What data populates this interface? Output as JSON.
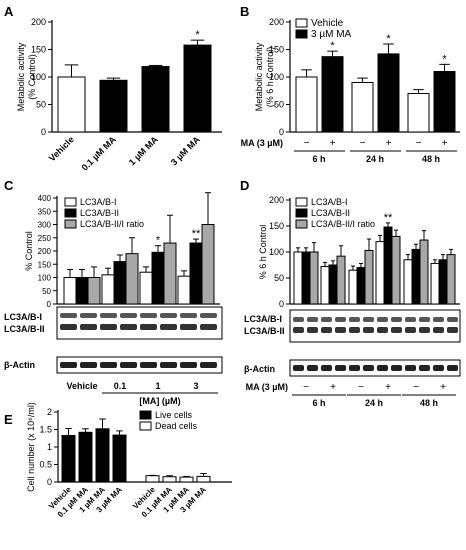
{
  "chart_data": [
    {
      "panel": "A",
      "type": "bar",
      "ylabel": "Metabolic activity\n(% Control)",
      "ylim": [
        0,
        200
      ],
      "yticks": [
        0,
        50,
        100,
        150,
        200
      ],
      "categories": [
        "Vehicle",
        "0.1 µM MA",
        "1 µM MA",
        "3 µM MA"
      ],
      "values": [
        100,
        94,
        119,
        158
      ],
      "errors": [
        22,
        4,
        2,
        9
      ],
      "fills": [
        "#ffffff",
        "#000000",
        "#000000",
        "#000000"
      ],
      "annotations": [
        "",
        "",
        "",
        "*"
      ]
    },
    {
      "panel": "B",
      "type": "bar",
      "ylabel": "Metabolic activity\n(% 6 h Control)",
      "ylim": [
        0,
        200
      ],
      "yticks": [
        0,
        50,
        100,
        150,
        200
      ],
      "legend": [
        "Vehicle",
        "3 µM MA"
      ],
      "legend_position": "top-left",
      "treatment_label": "MA (3 µM)",
      "groups": [
        "6 h",
        "24 h",
        "48 h"
      ],
      "signs": [
        "−",
        "+"
      ],
      "series": [
        {
          "values": [
            100,
            90,
            70
          ],
          "errors": [
            13,
            8,
            7
          ],
          "fill": "#ffffff"
        },
        {
          "values": [
            137,
            142,
            110
          ],
          "errors": [
            10,
            18,
            13
          ],
          "fill": "#000000"
        }
      ],
      "annotations": [
        [
          "",
          "*"
        ],
        [
          "",
          "*"
        ],
        [
          "",
          "*"
        ]
      ]
    },
    {
      "panel": "C",
      "type": "bar",
      "ylabel": "% Control",
      "ylim": [
        0,
        400
      ],
      "yticks": [
        0,
        50,
        100,
        150,
        200,
        250,
        300,
        350,
        400
      ],
      "legend": [
        "LC3A/B-I",
        "LC3A/B-II",
        "LC3A/B-II/I ratio"
      ],
      "legend_position": "top-left",
      "groups": [
        "Vehicle",
        "0.1",
        "1",
        "3"
      ],
      "xlabel": "[MA] (µM)",
      "series": [
        {
          "values": [
            100,
            110,
            120,
            105
          ],
          "errors": [
            30,
            25,
            20,
            20
          ],
          "fill": "#ffffff"
        },
        {
          "values": [
            100,
            160,
            195,
            230
          ],
          "errors": [
            30,
            25,
            25,
            15
          ],
          "fill": "#000000"
        },
        {
          "values": [
            100,
            190,
            230,
            300
          ],
          "errors": [
            40,
            60,
            105,
            120
          ],
          "fill": "#a8a8a8"
        }
      ],
      "annotations": [
        [
          "",
          "",
          ""
        ],
        [
          "",
          "",
          ""
        ],
        [
          "",
          "*",
          ""
        ],
        [
          "",
          "**",
          ""
        ]
      ],
      "blot_labels": [
        [
          "LC3A/B-I",
          "LC3A/B-II"
        ],
        [
          "β-Actin"
        ]
      ]
    },
    {
      "panel": "D",
      "type": "bar",
      "ylabel": "% 6 h Control",
      "ylim": [
        0,
        200
      ],
      "yticks": [
        0,
        50,
        100,
        150,
        200
      ],
      "legend": [
        "LC3A/B-I",
        "LC3A/B-II",
        "LC3A/B-II/I ratio"
      ],
      "legend_position": "top-left",
      "treatment_label": "MA (3 µM)",
      "groups": [
        "6 h",
        "24 h",
        "48 h"
      ],
      "signs": [
        "−",
        "+"
      ],
      "series": [
        {
          "values": [
            100,
            72,
            65,
            120,
            85,
            78
          ],
          "errors": [
            8,
            8,
            8,
            12,
            10,
            7
          ],
          "fill": "#ffffff"
        },
        {
          "values": [
            100,
            75,
            70,
            148,
            105,
            85
          ],
          "errors": [
            8,
            8,
            8,
            8,
            10,
            10
          ],
          "fill": "#000000"
        },
        {
          "values": [
            100,
            92,
            103,
            130,
            123,
            95
          ],
          "errors": [
            18,
            20,
            22,
            12,
            18,
            10
          ],
          "fill": "#a8a8a8"
        }
      ],
      "annotations": [
        [
          "",
          "",
          ""
        ],
        [
          "",
          "",
          ""
        ],
        [
          "",
          "",
          ""
        ],
        [
          "",
          "**",
          ""
        ],
        [
          "",
          "",
          ""
        ],
        [
          "",
          "",
          ""
        ]
      ],
      "blot_labels": [
        [
          "LC3A/B-I",
          "LC3A/B-II"
        ],
        [
          "β-Actin"
        ]
      ]
    },
    {
      "panel": "E",
      "type": "bar",
      "ylabel": "Cell number (x 10⁶/ml)",
      "ylim": [
        0,
        2.0
      ],
      "yticks": [
        0,
        0.5,
        1.0,
        1.5,
        2.0
      ],
      "legend": [
        "Live cells",
        "Dead cells"
      ],
      "legend_position": "top-right",
      "categories": [
        "Vehicle",
        "0.1 µM MA",
        "1 µM MA",
        "3 µM MA",
        "Vehicle",
        "0.1 µM MA",
        "1 µM MA",
        "3 µM MA"
      ],
      "values": [
        1.33,
        1.42,
        1.52,
        1.34,
        0.18,
        0.15,
        0.14,
        0.16
      ],
      "errors": [
        0.2,
        0.1,
        0.28,
        0.12,
        0.01,
        0.03,
        0.02,
        0.08
      ],
      "fills": [
        "#000000",
        "#000000",
        "#000000",
        "#000000",
        "#ffffff",
        "#ffffff",
        "#ffffff",
        "#ffffff"
      ]
    }
  ]
}
